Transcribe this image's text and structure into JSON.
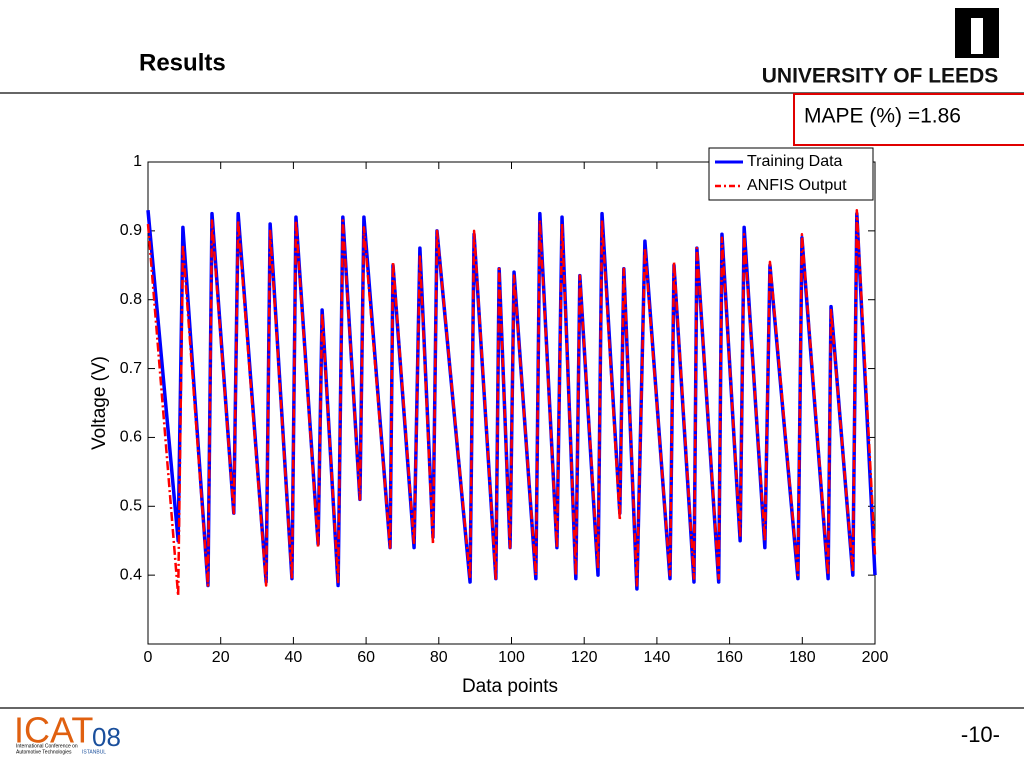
{
  "header": {
    "title": "Results",
    "university": "UNIVERSITY OF LEEDS"
  },
  "annotation": "MAPE (%) =1.86",
  "footer": {
    "logo": "ICAT",
    "logo_year": "08",
    "logo_caption_1": "International Conference on",
    "logo_caption_2": "Automotive Technologies",
    "logo_caption_3": "ISTANBUL",
    "page": "-10-"
  },
  "chart_data": {
    "type": "line",
    "xlabel": "Data points",
    "ylabel": "Voltage (V)",
    "x": [
      0,
      8.3,
      9.6,
      16.5,
      17.6,
      23.6,
      24.8,
      32.5,
      33.6,
      39.6,
      40.7,
      46.8,
      47.9,
      52.3,
      53.6,
      58.3,
      59.4,
      66.6,
      67.4,
      73.2,
      74.8,
      78.4,
      79.5,
      88.6,
      89.7,
      95.7,
      96.6,
      99.6,
      100.7,
      106.7,
      107.8,
      112.5,
      113.9,
      117.7,
      118.8,
      123.8,
      124.9,
      129.8,
      130.9,
      134.5,
      136.7,
      143.6,
      144.7,
      150.2,
      151,
      157,
      157.9,
      162.9,
      164,
      169.7,
      171.1,
      178.8,
      179.9,
      187.1,
      187.9,
      193.9,
      195,
      200
    ],
    "series": [
      {
        "name": "Training Data",
        "color": "#0000ff",
        "dash": false,
        "values": [
          0.93,
          0.45,
          0.905,
          0.385,
          0.925,
          0.49,
          0.925,
          0.39,
          0.91,
          0.395,
          0.92,
          0.445,
          0.785,
          0.385,
          0.92,
          0.51,
          0.92,
          0.44,
          0.85,
          0.44,
          0.875,
          0.455,
          0.9,
          0.39,
          0.895,
          0.395,
          0.845,
          0.44,
          0.84,
          0.395,
          0.925,
          0.44,
          0.92,
          0.395,
          0.835,
          0.4,
          0.925,
          0.49,
          0.845,
          0.38,
          0.885,
          0.395,
          0.85,
          0.39,
          0.875,
          0.39,
          0.895,
          0.45,
          0.905,
          0.44,
          0.85,
          0.395,
          0.89,
          0.395,
          0.79,
          0.4,
          0.925,
          0.4
        ]
      },
      {
        "name": "ANFIS Output",
        "color": "#ff0000",
        "dash": true,
        "values": [
          0.91,
          0.37,
          0.88,
          0.385,
          0.915,
          0.49,
          0.915,
          0.385,
          0.9,
          0.395,
          0.915,
          0.44,
          0.78,
          0.39,
          0.915,
          0.51,
          0.905,
          0.44,
          0.855,
          0.445,
          0.865,
          0.445,
          0.9,
          0.395,
          0.9,
          0.395,
          0.845,
          0.44,
          0.835,
          0.4,
          0.915,
          0.44,
          0.91,
          0.4,
          0.835,
          0.41,
          0.915,
          0.48,
          0.845,
          0.385,
          0.875,
          0.4,
          0.855,
          0.395,
          0.875,
          0.395,
          0.89,
          0.455,
          0.895,
          0.45,
          0.855,
          0.4,
          0.895,
          0.4,
          0.785,
          0.405,
          0.93,
          0.43
        ]
      }
    ],
    "xlim": [
      0,
      200
    ],
    "xticks": [
      0,
      20,
      40,
      60,
      80,
      100,
      120,
      140,
      160,
      180,
      200
    ],
    "ylim": [
      0.3,
      1
    ],
    "yticks": [
      0.4,
      0.5,
      0.6,
      0.7,
      0.8,
      0.9,
      1
    ],
    "legend": "upper-right",
    "grid": false
  }
}
